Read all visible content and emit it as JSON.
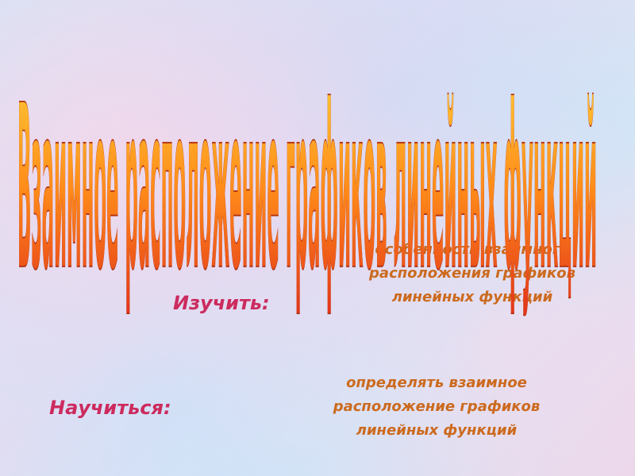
{
  "title": "Взаимное расположение графиков линейных функций",
  "items": [
    {
      "label": "Изучить:",
      "text": "особенности взаимного расположения графиков линейных функций"
    },
    {
      "label": "Научиться:",
      "text": "определять взаимное расположение графиков линейных функций"
    }
  ]
}
